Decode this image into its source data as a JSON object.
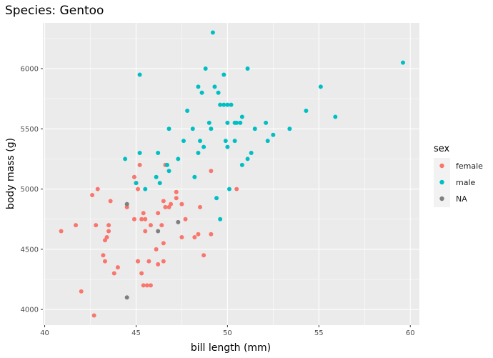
{
  "chart_data": {
    "type": "scatter",
    "title": "Species: Gentoo",
    "xlabel": "bill length (mm)",
    "ylabel": "body mass (g)",
    "xlim": [
      39.9,
      60.5
    ],
    "ylim": [
      3870,
      6380
    ],
    "x_ticks": [
      40,
      45,
      50,
      55,
      60
    ],
    "y_ticks": [
      4000,
      4500,
      5000,
      5500,
      6000
    ],
    "x_tick_labels": [
      "40",
      "45",
      "50",
      "55",
      "60"
    ],
    "y_tick_labels": [
      "4000",
      "4500",
      "5000",
      "5500",
      "6000"
    ],
    "grid": true,
    "legend": {
      "title": "sex",
      "position": "right",
      "entries": [
        "female",
        "male",
        "NA"
      ]
    },
    "colors": {
      "female": "#f8766d",
      "male": "#00bfc4",
      "NA": "#7f7f7f",
      "panel": "#ebebeb",
      "grid": "#ffffff"
    },
    "series": [
      {
        "name": "female",
        "color": "#f8766d",
        "points": [
          [
            40.9,
            4650
          ],
          [
            41.7,
            4700
          ],
          [
            42.0,
            4150
          ],
          [
            42.6,
            4950
          ],
          [
            42.7,
            3950
          ],
          [
            42.8,
            4700
          ],
          [
            42.9,
            5000
          ],
          [
            43.2,
            4450
          ],
          [
            43.3,
            4400
          ],
          [
            43.3,
            4575
          ],
          [
            43.4,
            4600
          ],
          [
            43.5,
            4700
          ],
          [
            43.5,
            4650
          ],
          [
            43.6,
            4900
          ],
          [
            43.8,
            4300
          ],
          [
            44.0,
            4350
          ],
          [
            44.5,
            4850
          ],
          [
            44.9,
            4750
          ],
          [
            44.9,
            5100
          ],
          [
            45.0,
            5050
          ],
          [
            45.1,
            4400
          ],
          [
            45.1,
            5000
          ],
          [
            45.1,
            4400
          ],
          [
            45.2,
            5200
          ],
          [
            45.3,
            4750
          ],
          [
            45.3,
            4300
          ],
          [
            45.4,
            4200
          ],
          [
            45.4,
            4800
          ],
          [
            45.5,
            4650
          ],
          [
            45.5,
            4750
          ],
          [
            45.6,
            4200
          ],
          [
            45.7,
            4400
          ],
          [
            45.8,
            4200
          ],
          [
            45.8,
            4700
          ],
          [
            46.1,
            4500
          ],
          [
            46.2,
            4800
          ],
          [
            46.2,
            4375
          ],
          [
            46.4,
            4700
          ],
          [
            46.5,
            4550
          ],
          [
            46.5,
            4400
          ],
          [
            46.5,
            4900
          ],
          [
            46.6,
            4850
          ],
          [
            46.6,
            5200
          ],
          [
            46.8,
            4850
          ],
          [
            46.9,
            4875
          ],
          [
            47.2,
            4925
          ],
          [
            47.2,
            4975
          ],
          [
            47.5,
            4875
          ],
          [
            47.5,
            4600
          ],
          [
            47.7,
            4750
          ],
          [
            48.2,
            4600
          ],
          [
            48.4,
            4625
          ],
          [
            48.5,
            4850
          ],
          [
            48.7,
            4450
          ],
          [
            49.1,
            4625
          ],
          [
            49.1,
            5150
          ],
          [
            50.5,
            5000
          ]
        ]
      },
      {
        "name": "male",
        "color": "#00bfc4",
        "points": [
          [
            44.4,
            5250
          ],
          [
            45.0,
            5050
          ],
          [
            45.2,
            5300
          ],
          [
            45.2,
            5950
          ],
          [
            45.5,
            5000
          ],
          [
            46.1,
            5100
          ],
          [
            46.2,
            5300
          ],
          [
            46.3,
            5050
          ],
          [
            46.7,
            5200
          ],
          [
            46.8,
            5150
          ],
          [
            46.8,
            5500
          ],
          [
            47.3,
            5250
          ],
          [
            47.6,
            5400
          ],
          [
            47.8,
            5650
          ],
          [
            48.1,
            5500
          ],
          [
            48.2,
            5100
          ],
          [
            48.4,
            5300
          ],
          [
            48.4,
            5850
          ],
          [
            48.5,
            5400
          ],
          [
            48.6,
            5800
          ],
          [
            48.7,
            5350
          ],
          [
            48.8,
            6000
          ],
          [
            49.0,
            5550
          ],
          [
            49.1,
            5500
          ],
          [
            49.2,
            6300
          ],
          [
            49.3,
            5850
          ],
          [
            49.4,
            4925
          ],
          [
            49.5,
            5800
          ],
          [
            49.6,
            4750
          ],
          [
            49.6,
            5700
          ],
          [
            49.8,
            5700
          ],
          [
            49.8,
            5950
          ],
          [
            49.9,
            5400
          ],
          [
            50.0,
            5350
          ],
          [
            50.0,
            5700
          ],
          [
            50.0,
            5550
          ],
          [
            50.1,
            5000
          ],
          [
            50.2,
            5700
          ],
          [
            50.4,
            5550
          ],
          [
            50.4,
            5400
          ],
          [
            50.5,
            5550
          ],
          [
            50.7,
            5550
          ],
          [
            50.8,
            5600
          ],
          [
            50.8,
            5200
          ],
          [
            51.1,
            5250
          ],
          [
            51.1,
            6000
          ],
          [
            51.3,
            5300
          ],
          [
            51.5,
            5500
          ],
          [
            52.1,
            5550
          ],
          [
            52.2,
            5400
          ],
          [
            52.5,
            5450
          ],
          [
            53.4,
            5500
          ],
          [
            54.3,
            5650
          ],
          [
            55.1,
            5850
          ],
          [
            55.9,
            5600
          ],
          [
            59.6,
            6050
          ]
        ]
      },
      {
        "name": "NA",
        "color": "#7f7f7f",
        "points": [
          [
            44.5,
            4875
          ],
          [
            44.5,
            4100
          ],
          [
            46.2,
            4650
          ],
          [
            47.3,
            4725
          ]
        ]
      }
    ]
  }
}
